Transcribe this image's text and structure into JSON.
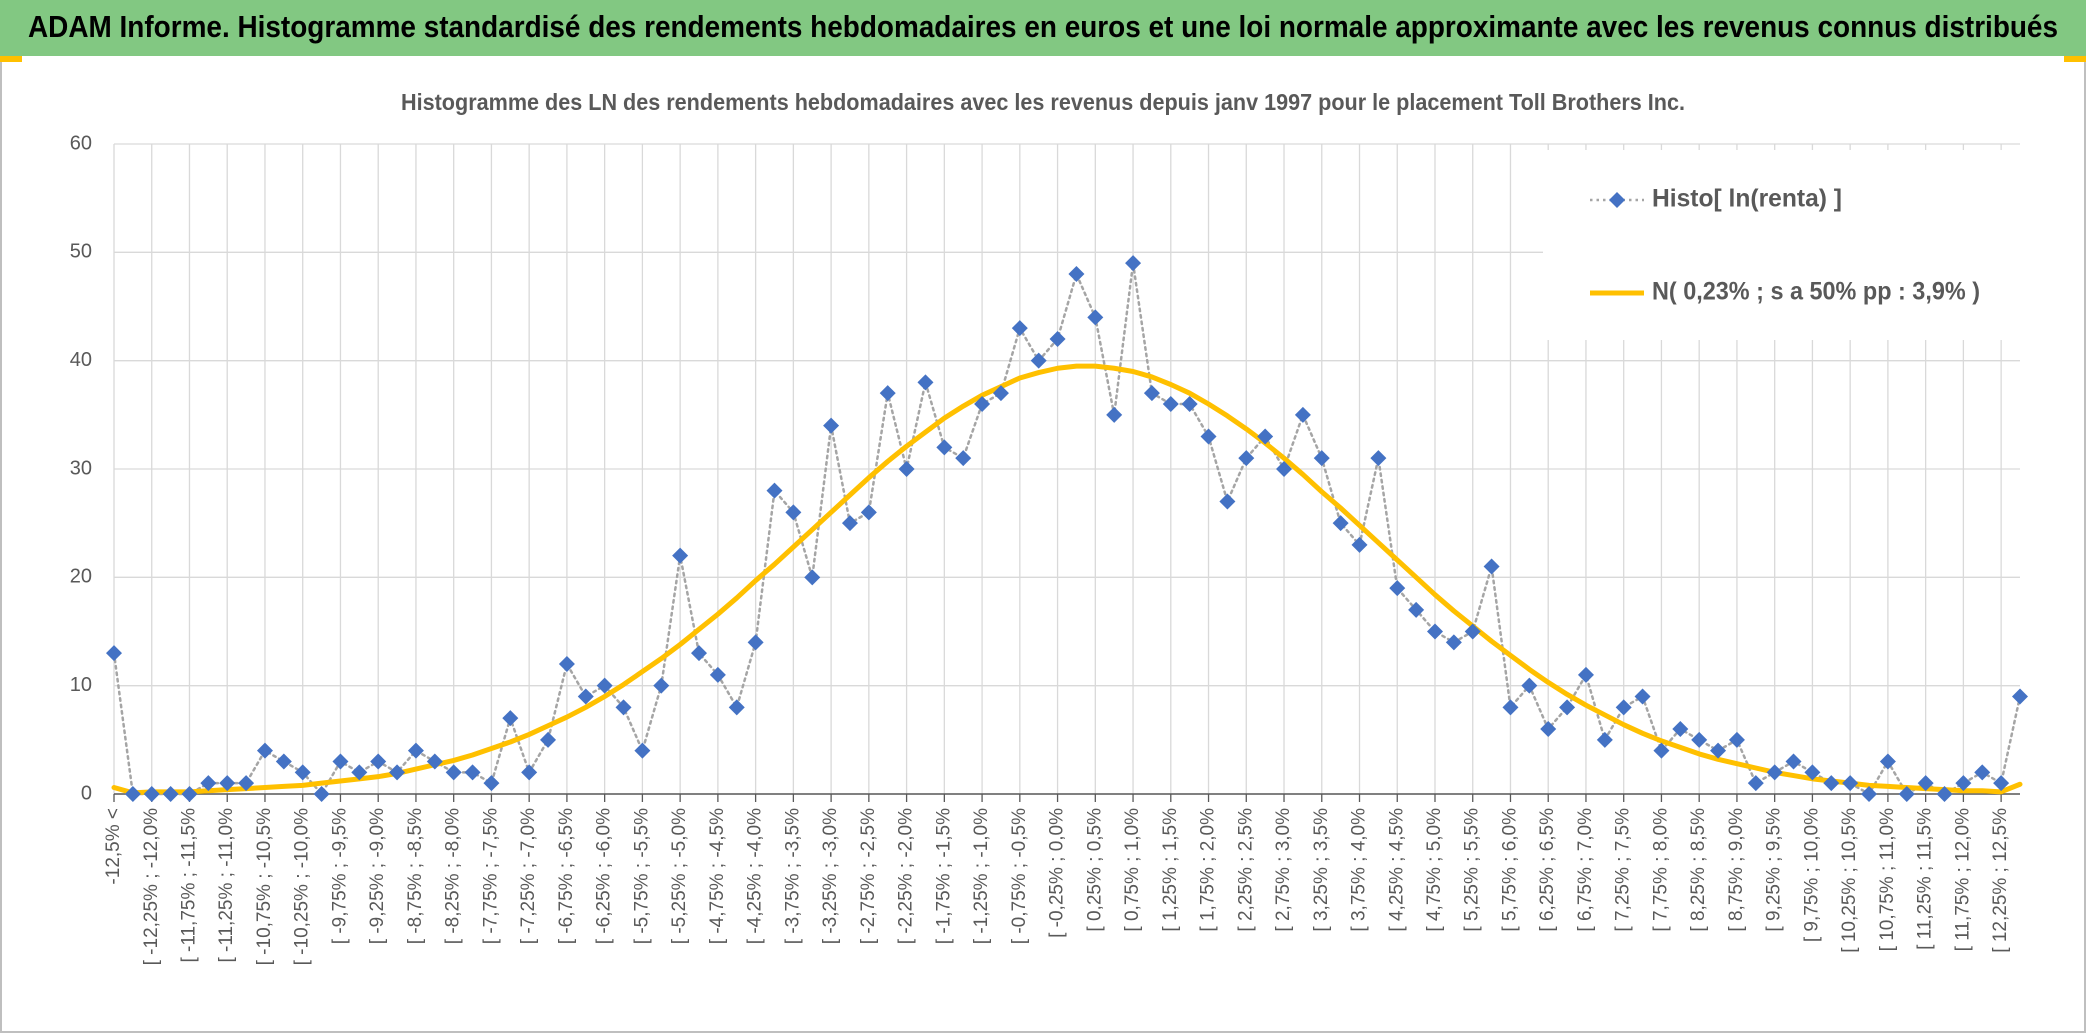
{
  "chart_data": {
    "type": "line",
    "header": "ADAM Informe. Histogramme standardisé des rendements hebdomadaires en euros et une loi normale approximante avec les revenus connus distribués",
    "title": "Histogramme des LN des rendements hebdomadaires avec les revenus depuis janv 1997 pour le placement Toll Brothers Inc.",
    "categories": [
      "-12,5% <",
      null,
      "[ -12,25% ; -12,0%",
      null,
      "[ -11,75% ; -11,5%",
      null,
      "[ -11,25% ; -11,0%",
      null,
      "[ -10,75% ; -10,5%",
      null,
      "[ -10,25% ; -10,0%",
      null,
      "[ -9,75% ; -9,5%",
      null,
      "[ -9,25% ; -9,0%",
      null,
      "[ -8,75% ; -8,5%",
      null,
      "[ -8,25% ; -8,0%",
      null,
      "[ -7,75% ; -7,5%",
      null,
      "[ -7,25% ; -7,0%",
      null,
      "[ -6,75% ; -6,5%",
      null,
      "[ -6,25% ; -6,0%",
      null,
      "[ -5,75% ; -5,5%",
      null,
      "[ -5,25% ; -5,0%",
      null,
      "[ -4,75% ; -4,5%",
      null,
      "[ -4,25% ; -4,0%",
      null,
      "[ -3,75% ; -3,5%",
      null,
      "[ -3,25% ; -3,0%",
      null,
      "[ -2,75% ; -2,5%",
      null,
      "[ -2,25% ; -2,0%",
      null,
      "[ -1,75% ; -1,5%",
      null,
      "[ -1,25% ; -1,0%",
      null,
      "[ -0,75% ; -0,5%",
      null,
      "[ -0,25% ; 0,0%",
      null,
      "[ 0,25% ; 0,5%",
      null,
      "[ 0,75% ; 1,0%",
      null,
      "[ 1,25% ; 1,5%",
      null,
      "[ 1,75% ; 2,0%",
      null,
      "[ 2,25% ; 2,5%",
      null,
      "[ 2,75% ; 3,0%",
      null,
      "[ 3,25% ; 3,5%",
      null,
      "[ 3,75% ; 4,0%",
      null,
      "[ 4,25% ; 4,5%",
      null,
      "[ 4,75% ; 5,0%",
      null,
      "[ 5,25% ; 5,5%",
      null,
      "[ 5,75% ; 6,0%",
      null,
      "[ 6,25% ; 6,5%",
      null,
      "[ 6,75% ; 7,0%",
      null,
      "[ 7,25% ; 7,5%",
      null,
      "[ 7,75% ; 8,0%",
      null,
      "[ 8,25% ; 8,5%",
      null,
      "[ 8,75% ; 9,0%",
      null,
      "[ 9,25% ; 9,5%",
      null,
      "[ 9,75% ; 10,0%",
      null,
      "[ 10,25% ; 10,5%",
      null,
      "[ 10,75% ; 11,0%",
      null,
      "[ 11,25% ; 11,5%",
      null,
      "[ 11,75% ; 12,0%",
      null,
      "[ 12,25% ; 12,5%",
      null
    ],
    "series": [
      {
        "name": "Histo[ ln(renta) ]",
        "color": "#4472c4",
        "line_color": "#a5a5a5",
        "line_style": "dotted",
        "marker": "diamond",
        "values": [
          13,
          0,
          0,
          0,
          0,
          1,
          1,
          1,
          4,
          3,
          2,
          0,
          3,
          2,
          3,
          2,
          4,
          3,
          2,
          2,
          1,
          7,
          2,
          5,
          12,
          9,
          10,
          8,
          4,
          10,
          22,
          13,
          11,
          8,
          14,
          28,
          26,
          20,
          34,
          25,
          26,
          37,
          30,
          38,
          32,
          31,
          36,
          37,
          43,
          40,
          42,
          48,
          44,
          35,
          49,
          37,
          36,
          36,
          33,
          27,
          31,
          33,
          30,
          35,
          31,
          25,
          23,
          31,
          19,
          17,
          15,
          14,
          15,
          21,
          8,
          10,
          6,
          8,
          11,
          5,
          8,
          9,
          4,
          6,
          5,
          4,
          5,
          1,
          2,
          3,
          2,
          1,
          1,
          0,
          3,
          0,
          1,
          0,
          1,
          2,
          1,
          9
        ]
      },
      {
        "name": "N( 0,23% ; s a 50% pp : 3,9% )",
        "color": "#ffc000",
        "line_style": "solid",
        "marker": "none",
        "values": [
          0.6,
          0.1,
          0.2,
          0.2,
          0.2,
          0.3,
          0.4,
          0.5,
          0.6,
          0.7,
          0.8,
          1.0,
          1.2,
          1.4,
          1.6,
          1.9,
          2.3,
          2.7,
          3.1,
          3.6,
          4.2,
          4.8,
          5.5,
          6.3,
          7.1,
          8.0,
          9.0,
          10.1,
          11.3,
          12.5,
          13.8,
          15.2,
          16.6,
          18.1,
          19.7,
          21.2,
          22.8,
          24.4,
          26.0,
          27.6,
          29.2,
          30.7,
          32.1,
          33.4,
          34.7,
          35.8,
          36.8,
          37.6,
          38.4,
          38.9,
          39.3,
          39.5,
          39.5,
          39.3,
          39.0,
          38.5,
          37.8,
          37.0,
          36.0,
          34.9,
          33.7,
          32.4,
          31.0,
          29.5,
          27.9,
          26.4,
          24.8,
          23.2,
          21.6,
          20.0,
          18.4,
          16.9,
          15.5,
          14.1,
          12.8,
          11.5,
          10.3,
          9.2,
          8.2,
          7.3,
          6.4,
          5.6,
          4.9,
          4.3,
          3.7,
          3.2,
          2.8,
          2.4,
          2.0,
          1.7,
          1.4,
          1.2,
          1.0,
          0.8,
          0.7,
          0.6,
          0.5,
          0.4,
          0.3,
          0.3,
          0.2,
          0.9
        ]
      }
    ],
    "ylim": [
      0,
      60
    ],
    "yticks": [
      0,
      10,
      20,
      30,
      40,
      50,
      60
    ],
    "grid": true,
    "legend": "top-right"
  }
}
